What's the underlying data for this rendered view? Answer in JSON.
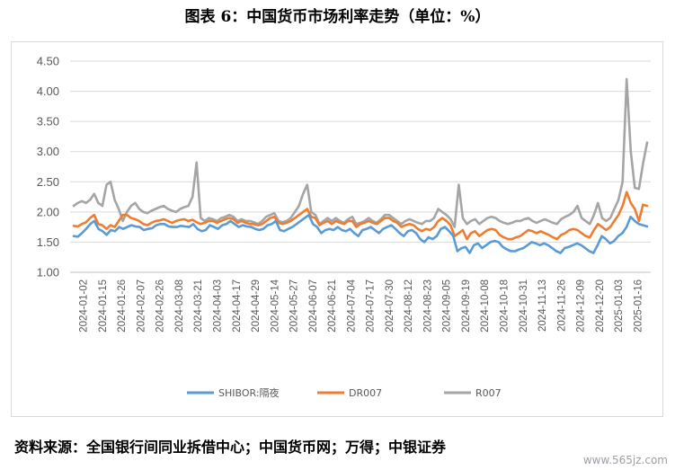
{
  "title": "图表 6：中国货币市场利率走势（单位：%）",
  "source": "资料来源：全国银行间同业拆借中心；中国货币网；万得；中银证券",
  "watermark": "www.565jz.com",
  "chart_data": {
    "type": "line",
    "title": "图表 6：中国货币市场利率走势（单位：%）",
    "ylim": [
      1.0,
      4.5
    ],
    "yticks": [
      "1.00",
      "1.50",
      "2.00",
      "2.50",
      "3.00",
      "3.50",
      "4.00",
      "4.50"
    ],
    "xticks": [
      "2024-01-02",
      "2024-01-15",
      "2024-01-26",
      "2024-02-07",
      "2024-02-26",
      "2024-03-08",
      "2024-03-21",
      "2024-04-03",
      "2024-04-17",
      "2024-04-29",
      "2024-05-14",
      "2024-05-27",
      "2024-06-07",
      "2024-06-21",
      "2024-07-04",
      "2024-07-17",
      "2024-07-30",
      "2024-08-12",
      "2024-08-23",
      "2024-09-05",
      "2024-09-19",
      "2024-10-08",
      "2024-10-18",
      "2024-10-31",
      "2024-11-13",
      "2024-11-26",
      "2024-12-09",
      "2024-12-20",
      "2025-01-03",
      "2025-01-16"
    ],
    "grid": "horizontal",
    "legend_position": "bottom",
    "colors": {
      "SHIBOR:隔夜": "#5b9bd5",
      "DR007": "#ed7d31",
      "R007": "#a5a5a5"
    },
    "series": [
      {
        "name": "SHIBOR:隔夜",
        "values": [
          1.6,
          1.59,
          1.65,
          1.72,
          1.8,
          1.85,
          1.72,
          1.68,
          1.62,
          1.7,
          1.68,
          1.75,
          1.72,
          1.75,
          1.78,
          1.76,
          1.75,
          1.7,
          1.72,
          1.73,
          1.78,
          1.8,
          1.8,
          1.76,
          1.75,
          1.75,
          1.77,
          1.76,
          1.75,
          1.8,
          1.72,
          1.68,
          1.7,
          1.78,
          1.75,
          1.72,
          1.78,
          1.8,
          1.85,
          1.8,
          1.75,
          1.78,
          1.76,
          1.75,
          1.72,
          1.7,
          1.72,
          1.78,
          1.8,
          1.85,
          1.7,
          1.68,
          1.72,
          1.75,
          1.8,
          1.85,
          1.9,
          1.95,
          1.8,
          1.75,
          1.65,
          1.7,
          1.72,
          1.7,
          1.75,
          1.7,
          1.68,
          1.72,
          1.65,
          1.6,
          1.7,
          1.72,
          1.75,
          1.7,
          1.65,
          1.72,
          1.75,
          1.78,
          1.72,
          1.65,
          1.6,
          1.68,
          1.7,
          1.65,
          1.55,
          1.5,
          1.58,
          1.55,
          1.6,
          1.72,
          1.75,
          1.68,
          1.6,
          1.35,
          1.4,
          1.42,
          1.32,
          1.45,
          1.48,
          1.4,
          1.45,
          1.5,
          1.52,
          1.5,
          1.42,
          1.38,
          1.35,
          1.35,
          1.38,
          1.4,
          1.45,
          1.5,
          1.48,
          1.45,
          1.48,
          1.45,
          1.4,
          1.35,
          1.32,
          1.4,
          1.42,
          1.45,
          1.48,
          1.45,
          1.4,
          1.35,
          1.32,
          1.45,
          1.6,
          1.55,
          1.48,
          1.52,
          1.6,
          1.65,
          1.75,
          1.92,
          1.85,
          1.8,
          1.78,
          1.76
        ]
      },
      {
        "name": "DR007",
        "values": [
          1.77,
          1.76,
          1.8,
          1.83,
          1.9,
          1.95,
          1.8,
          1.78,
          1.72,
          1.78,
          1.75,
          1.85,
          1.95,
          1.95,
          1.9,
          1.88,
          1.85,
          1.8,
          1.78,
          1.82,
          1.85,
          1.86,
          1.88,
          1.85,
          1.82,
          1.85,
          1.87,
          1.88,
          1.85,
          1.87,
          1.83,
          1.8,
          1.82,
          1.85,
          1.85,
          1.82,
          1.85,
          1.88,
          1.9,
          1.88,
          1.82,
          1.85,
          1.82,
          1.8,
          1.8,
          1.78,
          1.8,
          1.85,
          1.9,
          1.92,
          1.82,
          1.8,
          1.82,
          1.85,
          1.9,
          1.95,
          2.0,
          2.05,
          1.92,
          1.9,
          1.78,
          1.82,
          1.85,
          1.8,
          1.85,
          1.82,
          1.8,
          1.85,
          1.85,
          1.75,
          1.8,
          1.82,
          1.85,
          1.82,
          1.8,
          1.85,
          1.9,
          1.9,
          1.85,
          1.82,
          1.75,
          1.78,
          1.8,
          1.78,
          1.72,
          1.68,
          1.72,
          1.7,
          1.75,
          1.85,
          1.9,
          1.85,
          1.78,
          1.6,
          1.65,
          1.7,
          1.55,
          1.65,
          1.68,
          1.6,
          1.65,
          1.7,
          1.72,
          1.7,
          1.62,
          1.58,
          1.55,
          1.55,
          1.58,
          1.6,
          1.65,
          1.7,
          1.68,
          1.65,
          1.68,
          1.65,
          1.62,
          1.58,
          1.55,
          1.62,
          1.65,
          1.7,
          1.72,
          1.7,
          1.65,
          1.6,
          1.58,
          1.7,
          1.8,
          1.75,
          1.7,
          1.75,
          1.85,
          1.95,
          2.1,
          2.33,
          2.15,
          2.05,
          1.85,
          2.12,
          2.1
        ]
      },
      {
        "name": "R007",
        "values": [
          2.1,
          2.15,
          2.18,
          2.15,
          2.2,
          2.3,
          2.15,
          2.1,
          2.45,
          2.5,
          2.2,
          2.05,
          1.85,
          2.0,
          2.1,
          2.15,
          2.05,
          2.0,
          1.98,
          2.02,
          2.05,
          2.08,
          2.1,
          2.05,
          2.02,
          2.0,
          2.05,
          2.08,
          2.1,
          2.25,
          2.82,
          1.9,
          1.85,
          1.9,
          1.88,
          1.85,
          1.9,
          1.92,
          1.95,
          1.92,
          1.85,
          1.88,
          1.85,
          1.85,
          1.83,
          1.8,
          1.85,
          1.92,
          1.95,
          1.98,
          1.85,
          1.83,
          1.85,
          1.9,
          2.0,
          2.1,
          2.3,
          2.45,
          2.0,
          1.95,
          1.8,
          1.85,
          1.9,
          1.85,
          1.9,
          1.85,
          1.82,
          1.88,
          1.92,
          1.8,
          1.82,
          1.85,
          1.9,
          1.85,
          1.82,
          1.88,
          1.95,
          1.95,
          1.9,
          1.85,
          1.8,
          1.85,
          1.88,
          1.85,
          1.82,
          1.8,
          1.85,
          1.85,
          1.9,
          2.05,
          2.0,
          1.95,
          1.88,
          1.75,
          2.45,
          1.9,
          1.8,
          1.85,
          1.88,
          1.8,
          1.85,
          1.9,
          1.92,
          1.9,
          1.85,
          1.82,
          1.8,
          1.82,
          1.85,
          1.85,
          1.88,
          1.9,
          1.85,
          1.82,
          1.85,
          1.88,
          1.85,
          1.82,
          1.8,
          1.88,
          1.92,
          1.95,
          2.0,
          2.1,
          1.9,
          1.85,
          1.8,
          1.95,
          2.15,
          1.9,
          1.85,
          1.9,
          2.05,
          2.2,
          2.5,
          4.2,
          3.0,
          2.4,
          2.38,
          2.8,
          3.15
        ]
      }
    ]
  }
}
